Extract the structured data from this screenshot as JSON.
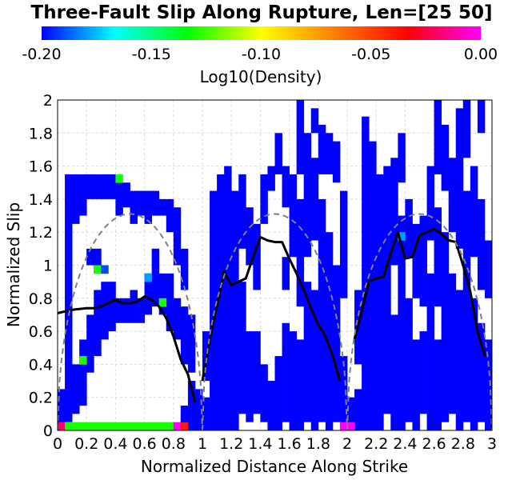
{
  "chart_data": {
    "type": "heatmap",
    "title": "Three-Fault Slip Along Rupture, Len=[25 50]",
    "xlabel": "Normalized Distance Along Strike",
    "ylabel": "Normalized Slip",
    "xlim": [
      0,
      3
    ],
    "ylim": [
      0,
      2
    ],
    "grid": true,
    "x_ticks": [
      "0",
      "0.2",
      "0.4",
      "0.6",
      "0.8",
      "1",
      "1.2",
      "1.4",
      "1.6",
      "1.8",
      "2",
      "2.2",
      "2.4",
      "2.6",
      "2.8",
      "3"
    ],
    "y_ticks": [
      "0",
      "0.2",
      "0.4",
      "0.6",
      "0.8",
      "1",
      "1.2",
      "1.4",
      "1.6",
      "1.8",
      "2"
    ],
    "colorbar": {
      "label": "Log10(Density)",
      "range": [
        -0.2,
        0.0
      ],
      "ticks": [
        "-0.20",
        "-0.15",
        "-0.10",
        "-0.05",
        "0.00"
      ],
      "colors": [
        "#0000ff",
        "#00ffff",
        "#00ff00",
        "#ffff00",
        "#ff7f00",
        "#ff0000",
        "#ff00ff"
      ]
    },
    "cell_size": [
      0.05,
      0.05
    ],
    "columns": [
      {
        "x": 0.0,
        "spans": [
          [
            0.0,
            0.25
          ]
        ]
      },
      {
        "x": 0.05,
        "spans": [
          [
            0.05,
            1.55
          ]
        ]
      },
      {
        "x": 0.1,
        "spans": [
          [
            0.1,
            0.4
          ],
          [
            1.25,
            1.55
          ]
        ]
      },
      {
        "x": 0.15,
        "spans": [
          [
            0.15,
            0.55
          ],
          [
            1.3,
            1.55
          ]
        ]
      },
      {
        "x": 0.2,
        "spans": [
          [
            0.35,
            0.7
          ],
          [
            1.0,
            1.1
          ],
          [
            1.4,
            1.55
          ]
        ]
      },
      {
        "x": 0.25,
        "spans": [
          [
            0.45,
            0.85
          ],
          [
            0.95,
            1.1
          ],
          [
            1.4,
            1.55
          ]
        ]
      },
      {
        "x": 0.3,
        "spans": [
          [
            0.55,
            0.9
          ],
          [
            1.4,
            1.55
          ]
        ]
      },
      {
        "x": 0.35,
        "spans": [
          [
            0.6,
            0.9
          ],
          [
            1.4,
            1.55
          ]
        ]
      },
      {
        "x": 0.4,
        "spans": [
          [
            0.65,
            0.8
          ],
          [
            1.3,
            1.5
          ]
        ]
      },
      {
        "x": 0.45,
        "spans": [
          [
            0.65,
            0.8
          ],
          [
            1.35,
            1.5
          ]
        ]
      },
      {
        "x": 0.5,
        "spans": [
          [
            0.65,
            0.85
          ],
          [
            1.25,
            1.45
          ]
        ]
      },
      {
        "x": 0.55,
        "spans": [
          [
            0.65,
            0.8
          ],
          [
            1.3,
            1.45
          ]
        ]
      },
      {
        "x": 0.6,
        "spans": [
          [
            0.7,
            0.95
          ],
          [
            1.25,
            1.45
          ]
        ]
      },
      {
        "x": 0.65,
        "spans": [
          [
            0.75,
            1.1
          ],
          [
            1.3,
            1.45
          ]
        ]
      },
      {
        "x": 0.7,
        "spans": [
          [
            0.7,
            0.95
          ],
          [
            1.3,
            1.4
          ]
        ]
      },
      {
        "x": 0.75,
        "spans": [
          [
            0.6,
            0.95
          ],
          [
            1.2,
            1.4
          ]
        ]
      },
      {
        "x": 0.8,
        "spans": [
          [
            0.55,
            0.8
          ],
          [
            1.0,
            1.35
          ]
        ]
      },
      {
        "x": 0.85,
        "spans": [
          [
            0.05,
            0.15
          ],
          [
            0.4,
            0.75
          ],
          [
            0.85,
            1.1
          ]
        ]
      },
      {
        "x": 0.9,
        "spans": [
          [
            0.0,
            0.3
          ],
          [
            0.35,
            0.7
          ]
        ]
      },
      {
        "x": 0.95,
        "spans": [
          [
            0.0,
            0.25
          ]
        ]
      },
      {
        "x": 1.0,
        "spans": [
          [
            0.0,
            0.2
          ],
          [
            0.3,
            0.6
          ]
        ]
      },
      {
        "x": 1.05,
        "spans": [
          [
            0.0,
            1.45
          ]
        ]
      },
      {
        "x": 1.1,
        "spans": [
          [
            0.0,
            1.55
          ]
        ]
      },
      {
        "x": 1.15,
        "spans": [
          [
            0.0,
            1.6
          ]
        ]
      },
      {
        "x": 1.2,
        "spans": [
          [
            0.0,
            1.45
          ]
        ]
      },
      {
        "x": 1.25,
        "spans": [
          [
            0.1,
            0.9
          ],
          [
            1.1,
            1.55
          ]
        ]
      },
      {
        "x": 1.3,
        "spans": [
          [
            0.05,
            0.6
          ],
          [
            1.0,
            1.35
          ]
        ]
      },
      {
        "x": 1.35,
        "spans": [
          [
            0.1,
            0.6
          ],
          [
            0.85,
            1.25
          ]
        ]
      },
      {
        "x": 1.4,
        "spans": [
          [
            0.05,
            0.4
          ],
          [
            1.25,
            1.55
          ]
        ]
      },
      {
        "x": 1.45,
        "spans": [
          [
            0.0,
            0.3
          ],
          [
            1.45,
            1.6
          ]
        ]
      },
      {
        "x": 1.5,
        "spans": [
          [
            0.0,
            0.45
          ],
          [
            1.55,
            1.8
          ]
        ]
      },
      {
        "x": 1.55,
        "spans": [
          [
            0.05,
            0.65
          ],
          [
            0.85,
            1.05
          ],
          [
            1.35,
            1.6
          ]
        ]
      },
      {
        "x": 1.6,
        "spans": [
          [
            0.0,
            0.6
          ],
          [
            1.05,
            1.55
          ]
        ]
      },
      {
        "x": 1.65,
        "spans": [
          [
            0.0,
            0.55
          ],
          [
            0.75,
            1.4
          ],
          [
            1.55,
            2.0
          ]
        ]
      },
      {
        "x": 1.7,
        "spans": [
          [
            0.05,
            0.9
          ],
          [
            1.05,
            1.8
          ]
        ]
      },
      {
        "x": 1.75,
        "spans": [
          [
            0.0,
            0.85
          ],
          [
            1.15,
            1.65
          ],
          [
            1.8,
            1.95
          ]
        ]
      },
      {
        "x": 1.8,
        "spans": [
          [
            0.05,
            1.4
          ],
          [
            1.55,
            1.85
          ]
        ]
      },
      {
        "x": 1.85,
        "spans": [
          [
            0.0,
            1.2
          ],
          [
            1.55,
            1.8
          ]
        ]
      },
      {
        "x": 1.9,
        "spans": [
          [
            0.05,
            1.0
          ],
          [
            1.5,
            1.75
          ]
        ]
      },
      {
        "x": 1.95,
        "spans": [
          [
            0.0,
            0.45
          ],
          [
            0.8,
            1.45
          ]
        ]
      },
      {
        "x": 2.0,
        "spans": [
          [
            0.0,
            0.2
          ]
        ]
      },
      {
        "x": 2.05,
        "spans": [
          [
            0.0,
            0.25
          ],
          [
            0.4,
            0.85
          ]
        ]
      },
      {
        "x": 2.1,
        "spans": [
          [
            0.0,
            1.9
          ]
        ]
      },
      {
        "x": 2.15,
        "spans": [
          [
            0.0,
            1.75
          ]
        ]
      },
      {
        "x": 2.2,
        "spans": [
          [
            0.0,
            1.55
          ]
        ]
      },
      {
        "x": 2.25,
        "spans": [
          [
            0.1,
            1.6
          ]
        ]
      },
      {
        "x": 2.3,
        "spans": [
          [
            0.0,
            0.7
          ],
          [
            1.0,
            1.65
          ]
        ]
      },
      {
        "x": 2.35,
        "spans": [
          [
            0.0,
            1.3
          ],
          [
            1.5,
            1.8
          ]
        ]
      },
      {
        "x": 2.4,
        "spans": [
          [
            0.05,
            0.8
          ],
          [
            1.05,
            1.4
          ]
        ]
      },
      {
        "x": 2.45,
        "spans": [
          [
            0.0,
            0.55
          ],
          [
            0.8,
            1.25
          ]
        ]
      },
      {
        "x": 2.5,
        "spans": [
          [
            0.1,
            0.6
          ],
          [
            0.75,
            1.3
          ]
        ]
      },
      {
        "x": 2.55,
        "spans": [
          [
            0.0,
            0.95
          ],
          [
            1.15,
            1.6
          ]
        ]
      },
      {
        "x": 2.6,
        "spans": [
          [
            0.0,
            0.55
          ],
          [
            0.75,
            1.35
          ],
          [
            1.55,
            2.0
          ]
        ]
      },
      {
        "x": 2.65,
        "spans": [
          [
            0.05,
            1.2
          ],
          [
            1.45,
            1.85
          ]
        ]
      },
      {
        "x": 2.7,
        "spans": [
          [
            0.1,
            0.95
          ],
          [
            1.2,
            1.65
          ]
        ]
      },
      {
        "x": 2.75,
        "spans": [
          [
            0.0,
            0.85
          ],
          [
            1.1,
            1.95
          ]
        ]
      },
      {
        "x": 2.8,
        "spans": [
          [
            0.05,
            1.45
          ],
          [
            1.65,
            2.0
          ]
        ]
      },
      {
        "x": 2.85,
        "spans": [
          [
            0.0,
            0.8
          ],
          [
            1.05,
            1.6
          ]
        ]
      },
      {
        "x": 2.9,
        "spans": [
          [
            0.05,
            0.65
          ],
          [
            0.85,
            1.4
          ],
          [
            1.8,
            2.0
          ]
        ]
      },
      {
        "x": 2.95,
        "spans": [
          [
            0.0,
            0.55
          ],
          [
            0.8,
            1.15
          ]
        ]
      }
    ],
    "highlight_cells": [
      {
        "x": 0.0,
        "y": 0.0,
        "value": -0.02
      },
      {
        "x": 0.05,
        "y": 0.0,
        "value": -0.13
      },
      {
        "x": 0.1,
        "y": 0.0,
        "value": -0.13
      },
      {
        "x": 0.15,
        "y": 0.0,
        "value": -0.13
      },
      {
        "x": 0.2,
        "y": 0.0,
        "value": -0.13
      },
      {
        "x": 0.25,
        "y": 0.0,
        "value": -0.13
      },
      {
        "x": 0.3,
        "y": 0.0,
        "value": -0.13
      },
      {
        "x": 0.35,
        "y": 0.0,
        "value": -0.13
      },
      {
        "x": 0.4,
        "y": 0.0,
        "value": -0.13
      },
      {
        "x": 0.45,
        "y": 0.0,
        "value": -0.13
      },
      {
        "x": 0.5,
        "y": 0.0,
        "value": -0.13
      },
      {
        "x": 0.55,
        "y": 0.0,
        "value": -0.13
      },
      {
        "x": 0.6,
        "y": 0.0,
        "value": -0.13
      },
      {
        "x": 0.65,
        "y": 0.0,
        "value": -0.13
      },
      {
        "x": 0.7,
        "y": 0.0,
        "value": -0.13
      },
      {
        "x": 0.75,
        "y": 0.0,
        "value": -0.13
      },
      {
        "x": 0.8,
        "y": 0.0,
        "value": 0.0
      },
      {
        "x": 0.85,
        "y": 0.0,
        "value": -0.04
      },
      {
        "x": 0.85,
        "y": 0.05,
        "value": -0.2
      },
      {
        "x": 1.95,
        "y": 0.0,
        "value": 0.0
      },
      {
        "x": 2.0,
        "y": 0.0,
        "value": 0.0
      },
      {
        "x": 0.15,
        "y": 0.4,
        "value": -0.13
      },
      {
        "x": 0.25,
        "y": 0.95,
        "value": -0.13
      },
      {
        "x": 0.3,
        "y": 0.95,
        "value": -0.19
      },
      {
        "x": 0.4,
        "y": 1.5,
        "value": -0.13
      },
      {
        "x": 0.6,
        "y": 0.9,
        "value": -0.18
      },
      {
        "x": 0.7,
        "y": 0.75,
        "value": -0.13
      },
      {
        "x": 2.35,
        "y": 1.15,
        "value": -0.18
      }
    ],
    "series": [
      {
        "name": "",
        "style": "solid",
        "color": "#000000",
        "segments": [
          {
            "x": [
              0.0,
              0.1,
              0.2,
              0.25,
              0.3,
              0.4,
              0.45,
              0.5,
              0.55,
              0.6,
              0.65,
              0.7,
              0.75,
              0.8,
              0.85,
              0.9,
              0.95
            ],
            "y": [
              0.71,
              0.73,
              0.74,
              0.74,
              0.75,
              0.79,
              0.77,
              0.77,
              0.78,
              0.81,
              0.79,
              0.75,
              0.68,
              0.57,
              0.43,
              0.34,
              0.17
            ]
          },
          {
            "x": [
              1.0,
              1.05,
              1.1,
              1.15,
              1.2,
              1.25,
              1.3,
              1.35,
              1.4,
              1.45,
              1.5,
              1.55,
              1.6,
              1.65,
              1.7,
              1.75,
              1.8,
              1.85,
              1.9,
              1.95
            ],
            "y": [
              0.3,
              0.55,
              0.75,
              0.96,
              0.88,
              0.9,
              0.92,
              1.05,
              1.17,
              1.15,
              1.14,
              1.14,
              1.04,
              0.95,
              0.85,
              0.74,
              0.64,
              0.57,
              0.45,
              0.3
            ]
          },
          {
            "x": [
              2.05,
              2.1,
              2.15,
              2.2,
              2.25,
              2.3,
              2.35,
              2.4,
              2.45,
              2.5,
              2.55,
              2.6,
              2.65,
              2.7,
              2.75,
              2.8,
              2.85,
              2.9,
              2.95
            ],
            "y": [
              0.55,
              0.72,
              0.9,
              0.92,
              0.93,
              1.07,
              1.2,
              1.04,
              1.05,
              1.18,
              1.2,
              1.22,
              1.19,
              1.15,
              1.14,
              1.0,
              0.84,
              0.6,
              0.45
            ]
          }
        ]
      },
      {
        "name": "",
        "style": "dashed",
        "color": "#808080",
        "segments": [
          {
            "fn": "ellipse",
            "x0": 0.0,
            "x1": 1.0,
            "peak": 1.31
          },
          {
            "fn": "ellipse",
            "x0": 1.0,
            "x1": 2.0,
            "peak": 1.31
          },
          {
            "fn": "ellipse",
            "x0": 2.0,
            "x1": 3.0,
            "peak": 1.31
          }
        ]
      }
    ]
  }
}
